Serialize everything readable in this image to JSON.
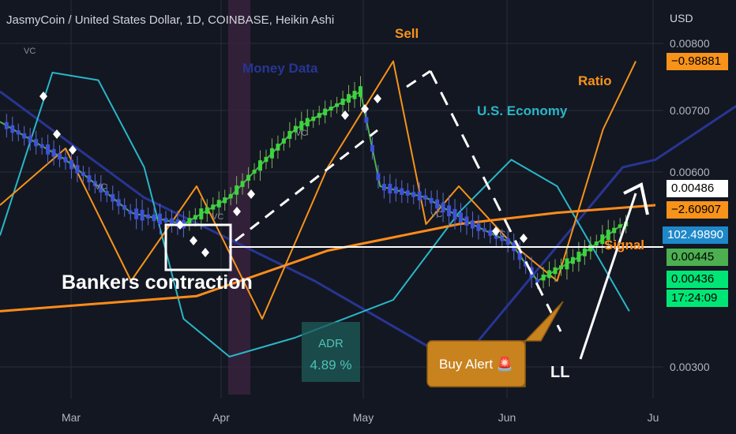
{
  "title": "JasmyCoin / United States Dollar, 1D, COINBASE, Heikin Ashi",
  "currency_label": "USD",
  "chart_data": {
    "type": "line",
    "y_ticks": [
      "0.00800",
      "0.00700",
      "0.00600",
      "0.00300"
    ],
    "x_ticks": [
      "Mar",
      "Apr",
      "May",
      "Jun",
      "Ju"
    ],
    "annotations": {
      "sell": "Sell",
      "money_data": "Money Data",
      "us_economy": "U.S. Economy",
      "ratio": "Ratio",
      "signal": "Signal",
      "bankers": "Bankers contraction",
      "adr_label": "ADR",
      "adr_value": "4.89 %",
      "buy_alert": "Buy Alert 🚨",
      "ll": "LL",
      "vc": "VC"
    },
    "price_tags": [
      {
        "value": "−0.98881",
        "bg": "#f7931a",
        "fg": "#000000"
      },
      {
        "value": "0.00486",
        "bg": "#ffffff",
        "fg": "#000000"
      },
      {
        "value": "−2.60907",
        "bg": "#f7931a",
        "fg": "#000000"
      },
      {
        "value": "102.49890",
        "bg": "#1e88c9",
        "fg": "#ffffff"
      },
      {
        "value": "0.00445",
        "bg": "#4caf50",
        "fg": "#000000"
      },
      {
        "value": "0.00436",
        "bg": "#00e676",
        "fg": "#000000"
      },
      {
        "value": "17:24:09",
        "bg": "#00e676",
        "fg": "#000000"
      }
    ],
    "series": [
      {
        "name": "Money Data",
        "color": "#283593",
        "x": [
          0,
          22,
          48,
          70,
          95,
          100,
          120
        ],
        "y": [
          80,
          52,
          30,
          8,
          60,
          62,
          85
        ]
      },
      {
        "name": "U.S. Economy",
        "color": "#29b6c6",
        "x": [
          0,
          8,
          15,
          22,
          28,
          35,
          45,
          60,
          70,
          78,
          85,
          90,
          96
        ],
        "y": [
          42,
          85,
          83,
          60,
          20,
          10,
          15,
          25,
          48,
          62,
          55,
          40,
          22
        ]
      },
      {
        "name": "Ratio",
        "color": "#f7931a",
        "x": [
          0,
          10,
          20,
          30,
          40,
          50,
          60,
          65,
          70,
          78,
          85,
          92,
          97
        ],
        "y": [
          50,
          65,
          30,
          55,
          20,
          60,
          88,
          45,
          55,
          40,
          30,
          70,
          88
        ]
      },
      {
        "name": "Signal",
        "color": "#ff8c1a",
        "x": [
          0,
          30,
          50,
          70,
          85,
          100
        ],
        "y": [
          22,
          26,
          38,
          45,
          48,
          50
        ]
      },
      {
        "name": "Price",
        "color": "#4caf50",
        "x": [
          0,
          10,
          20,
          28,
          35,
          45,
          55,
          58,
          65,
          72,
          78,
          82,
          88,
          95
        ],
        "y": [
          72,
          62,
          48,
          45,
          52,
          70,
          80,
          55,
          52,
          45,
          40,
          30,
          36,
          45
        ]
      }
    ],
    "horizontal_level": "0.00445"
  },
  "colors": {
    "background": "#131722",
    "grid": "#2a2e39",
    "text": "#b2b5be",
    "white": "#ffffff"
  }
}
